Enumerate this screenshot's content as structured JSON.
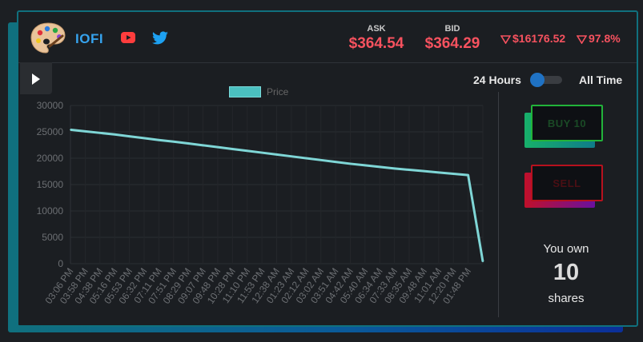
{
  "header": {
    "ticker": "IOFI",
    "logo_icon": "artist-palette-icon",
    "youtube_icon": "youtube-icon",
    "twitter_icon": "twitter-icon",
    "ask_label": "ASK",
    "ask_value": "$364.54",
    "bid_label": "BID",
    "bid_value": "$364.29",
    "change_amount": "$16176.52",
    "change_percent": "97.8%",
    "change_direction": "down",
    "accent_red": "#f7525f",
    "accent_blue": "#36a3ee"
  },
  "controls": {
    "play_icon": "play-icon",
    "range_short_label": "24 Hours",
    "range_long_label": "All Time",
    "toggle_state": "24 Hours"
  },
  "trade": {
    "buy_label": "BUY 10",
    "sell_label": "SELL",
    "own_prefix": "You own",
    "own_count": "10",
    "own_suffix": "shares"
  },
  "chart_data": {
    "type": "line",
    "title": "",
    "xlabel": "",
    "ylabel": "",
    "ylim": [
      0,
      30000
    ],
    "yticks": [
      "30000",
      "25000",
      "20000",
      "15000",
      "10000",
      "5000",
      "0"
    ],
    "legend_position": "top",
    "grid": true,
    "series_color": "#4bc0c0",
    "categories": [
      "03:06 PM",
      "03:58 PM",
      "04:38 PM",
      "05:16 PM",
      "05:53 PM",
      "06:32 PM",
      "07:11 PM",
      "07:51 PM",
      "08:29 PM",
      "09:07 PM",
      "09:48 PM",
      "10:28 PM",
      "11:10 PM",
      "11:53 PM",
      "12:38 AM",
      "01:23 AM",
      "02:12 AM",
      "03:02 AM",
      "03:51 AM",
      "04:42 AM",
      "05:40 AM",
      "06:34 AM",
      "07:33 AM",
      "08:35 AM",
      "09:48 AM",
      "11:01 AM",
      "12:20 PM",
      "01:48 PM",
      ""
    ],
    "series": [
      {
        "name": "Price",
        "values": [
          25400,
          25100,
          24800,
          24500,
          24150,
          23800,
          23450,
          23150,
          22800,
          22450,
          22100,
          21750,
          21400,
          21050,
          20700,
          20350,
          20000,
          19650,
          19300,
          18950,
          18650,
          18350,
          18050,
          17800,
          17550,
          17300,
          17050,
          16800,
          400
        ]
      }
    ]
  }
}
